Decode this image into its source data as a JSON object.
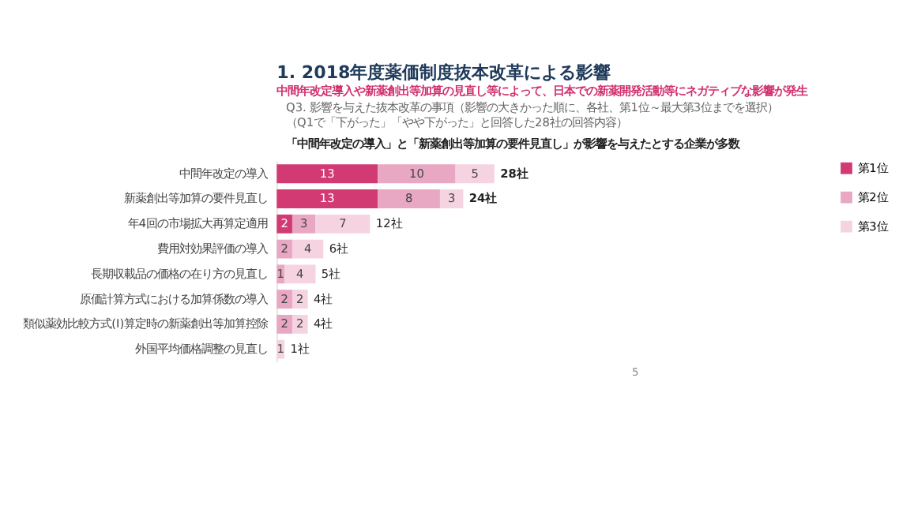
{
  "chart_data": {
    "type": "bar",
    "orientation": "horizontal",
    "stacked": true,
    "data_labels": true,
    "legend": "right",
    "grid": false,
    "title": "1. 2018年度薬価制度抜本改革による影響",
    "subtitle": "中間年改定導入や新薬創出等加算の見直し等によって、日本での新薬開発活動等にネガティブな影響が発生",
    "annotations": [
      "Q3. 影響を与えた抜本改革の事項（影響の大きかった順に、各社、第1位～最大第3位までを選択）",
      "（Q1で「下がった」「やや下がった」と回答した28社の回答内容）",
      "「中間年改定の導入」と「新薬創出等加算の要件見直し」が影響を与えたとする企業が多数",
      "5"
    ],
    "categories": [
      "中間年改定の導入",
      "新薬創出等加算の要件見直し",
      "年4回の市場拡大再算定適用",
      "費用対効果評価の導入",
      "長期収載品の価格の在り方の見直し",
      "原価計算方式における加算係数の導入",
      "類似薬効比較方式(I)算定時の新薬創出等加算控除",
      "外国平均価格調整の見直し"
    ],
    "series": [
      {
        "name": "第1位",
        "color": "#d23a74",
        "values": [
          13,
          13,
          2,
          null,
          null,
          null,
          null,
          null
        ]
      },
      {
        "name": "第2位",
        "color": "#e8a7c2",
        "values": [
          10,
          8,
          3,
          2,
          1,
          2,
          2,
          null
        ]
      },
      {
        "name": "第3位",
        "color": "#f6d3e1",
        "values": [
          5,
          3,
          7,
          4,
          4,
          2,
          2,
          1
        ]
      }
    ],
    "totals": [
      "28社",
      "24社",
      "12社",
      "6社",
      "5社",
      "4社",
      "4社",
      "1社"
    ]
  }
}
